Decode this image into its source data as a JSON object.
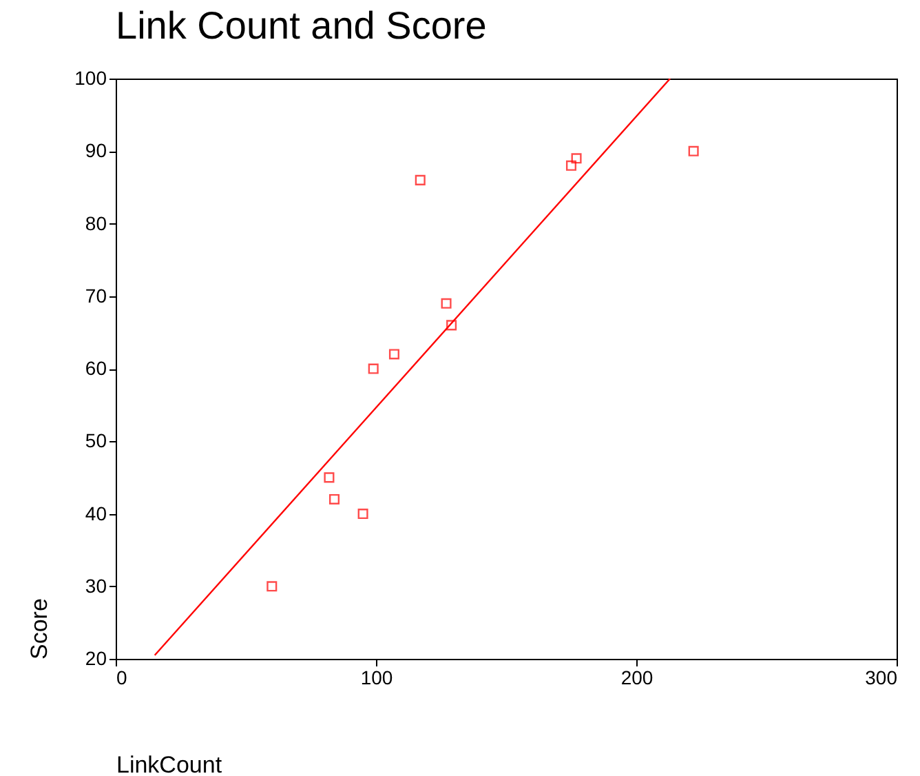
{
  "chart_data": {
    "type": "scatter",
    "title": "Link Count and Score",
    "xlabel": "LinkCount",
    "ylabel": "Score",
    "xlim": [
      0,
      300
    ],
    "xticks": [
      0,
      100,
      200,
      300
    ],
    "ylim": [
      20,
      100
    ],
    "yticks": [
      20,
      30,
      40,
      50,
      60,
      70,
      80,
      90,
      100
    ],
    "grid": false,
    "marker": "square",
    "series": [
      {
        "type": "scatter",
        "color": "#ff0000",
        "x": [
          60,
          82,
          84,
          95,
          99,
          107,
          117,
          127,
          129,
          175,
          177,
          222
        ],
        "values": [
          30,
          45,
          42,
          40,
          60,
          62,
          86,
          69,
          66,
          88,
          89,
          90
        ]
      },
      {
        "type": "line",
        "color": "#ff0000",
        "marker": "none",
        "line_style": "solid",
        "x": [
          15,
          213
        ],
        "values": [
          20.5,
          100
        ]
      }
    ]
  }
}
